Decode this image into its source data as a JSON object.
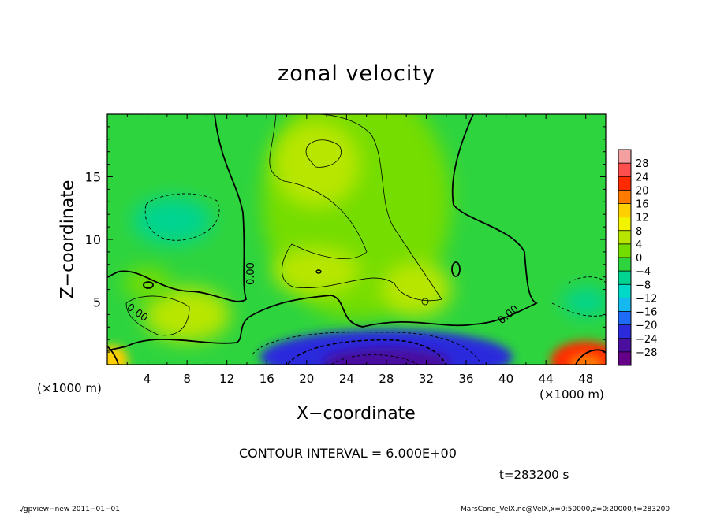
{
  "chart_data": {
    "type": "heatmap",
    "title": "zonal velocity",
    "xlabel": "X−coordinate",
    "ylabel": "Z−coordinate",
    "x_unit": "(×1000 m)",
    "y_unit": "(×1000 m)",
    "xlim": [
      0,
      50
    ],
    "ylim": [
      0,
      20
    ],
    "x_ticks": [
      "4",
      "8",
      "12",
      "16",
      "20",
      "24",
      "28",
      "32",
      "36",
      "40",
      "44",
      "48"
    ],
    "y_ticks": [
      "5",
      "10",
      "15"
    ],
    "contour_interval_text": "CONTOUR INTERVAL = 6.000E+00",
    "contour_label": "0.00",
    "colorbar": {
      "labels": [
        "28",
        "24",
        "20",
        "16",
        "12",
        "8",
        "4",
        "0",
        "−4",
        "−8",
        "−12",
        "−16",
        "−20",
        "−24",
        "−28"
      ],
      "colors": [
        "#f4a0a0",
        "#ff4e4e",
        "#ff2a00",
        "#ff7b00",
        "#ffcf00",
        "#f3f300",
        "#b8e600",
        "#74dd00",
        "#2ed43e",
        "#00d490",
        "#00d9c8",
        "#16b8f0",
        "#1e6cf5",
        "#2b2bdc",
        "#4a0f9f",
        "#650088"
      ]
    },
    "fields": [
      {
        "name": "background",
        "x": 25,
        "z": 10,
        "value": 0
      },
      {
        "name": "central-plume",
        "x": 25,
        "z": 13,
        "value": 4
      },
      {
        "name": "upper-plume-core",
        "x": 21,
        "z": 16,
        "value": 6
      },
      {
        "name": "mid-jet-core",
        "x": 21,
        "z": 7.5,
        "value": 8
      },
      {
        "name": "right-patch",
        "x": 31,
        "z": 6,
        "value": 6
      },
      {
        "name": "left-low-patch",
        "x": 8,
        "z": 4,
        "value": 5
      },
      {
        "name": "left-high-patch",
        "x": 4,
        "z": 6.5,
        "value": 4
      },
      {
        "name": "upper-left-cell",
        "x": 6.5,
        "z": 11.5,
        "value": -6
      },
      {
        "name": "right-mid-cell",
        "x": 48,
        "z": 5,
        "value": -5
      },
      {
        "name": "bottom-jet",
        "x": 28,
        "z": 0.6,
        "value": -20
      },
      {
        "name": "bottom-right-max",
        "x": 48,
        "z": 0.3,
        "value": 22
      },
      {
        "name": "bottom-left-max",
        "x": 0.5,
        "z": 0.3,
        "value": 14
      }
    ],
    "time_text": "t=283200 s",
    "footer_left": "./gpview−new  2011−01−01",
    "footer_right": "MarsCond_VelX.nc@VelX,x=0:50000,z=0:20000,t=283200"
  }
}
